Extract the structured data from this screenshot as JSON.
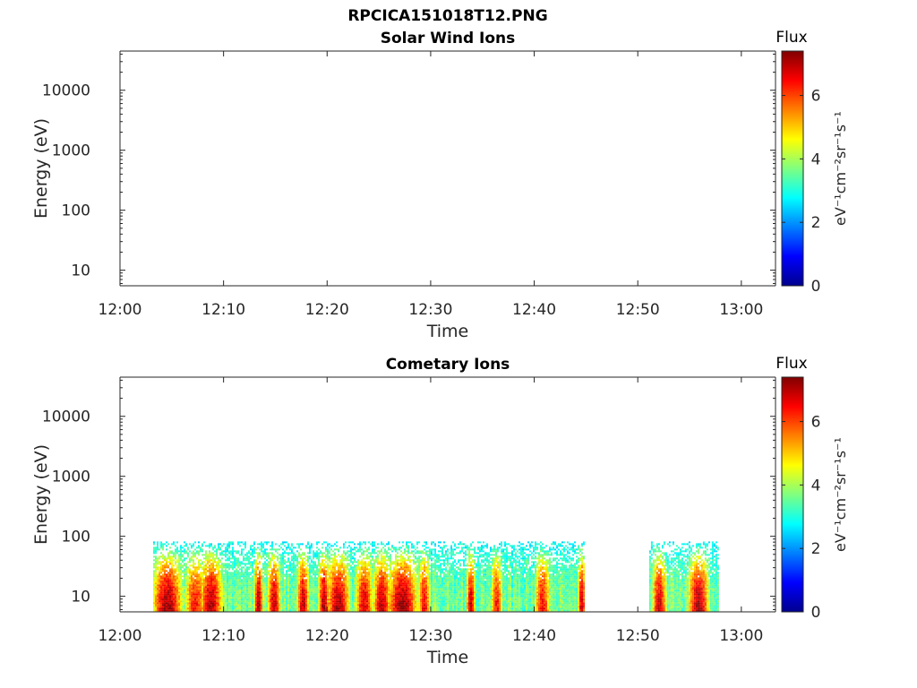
{
  "figure": {
    "title": "RPCICA151018T12.PNG"
  },
  "colors": {
    "colormap": [
      "#00008f",
      "#0000ff",
      "#00ffff",
      "#ffff00",
      "#ff0000",
      "#800000"
    ],
    "axis": "#262626",
    "no_data": "#ffffff"
  },
  "chart_data": [
    {
      "type": "heatmap",
      "title": "Solar Wind Ions",
      "xlabel": "Time",
      "ylabel": "Energy (eV)",
      "xticks": [
        "12:00",
        "12:10",
        "12:20",
        "12:30",
        "12:40",
        "12:50",
        "13:00"
      ],
      "xlim_minutes": [
        0,
        63.3
      ],
      "yscale": "log",
      "ylim": [
        5.5,
        45000
      ],
      "yticks": [
        {
          "value": 10,
          "label": "10"
        },
        {
          "value": 100,
          "label": "100"
        },
        {
          "value": 1000,
          "label": "1000"
        },
        {
          "value": 10000,
          "label": "10000"
        }
      ],
      "colorbar": {
        "label": "Flux",
        "unit": "eV⁻¹cm⁻²sr⁻¹s⁻¹",
        "range": [
          0,
          7.4
        ],
        "ticks": [
          {
            "value": 0,
            "label": "0"
          },
          {
            "value": 2,
            "label": "2"
          },
          {
            "value": 4,
            "label": "4"
          },
          {
            "value": 6,
            "label": "6"
          }
        ]
      },
      "data_present": false,
      "intervals": [],
      "energy_range": []
    },
    {
      "type": "heatmap",
      "title": "Cometary Ions",
      "xlabel": "Time",
      "ylabel": "Energy (eV)",
      "xticks": [
        "12:00",
        "12:10",
        "12:20",
        "12:30",
        "12:40",
        "12:50",
        "13:00"
      ],
      "xlim_minutes": [
        0,
        63.3
      ],
      "yscale": "log",
      "ylim": [
        5.5,
        45000
      ],
      "yticks": [
        {
          "value": 10,
          "label": "10"
        },
        {
          "value": 100,
          "label": "100"
        },
        {
          "value": 1000,
          "label": "1000"
        },
        {
          "value": 10000,
          "label": "10000"
        }
      ],
      "colorbar": {
        "label": "Flux",
        "unit": "eV⁻¹cm⁻²sr⁻¹s⁻¹",
        "range": [
          0,
          7.4
        ],
        "ticks": [
          {
            "value": 0,
            "label": "0"
          },
          {
            "value": 2,
            "label": "2"
          },
          {
            "value": 4,
            "label": "4"
          },
          {
            "value": 6,
            "label": "6"
          }
        ]
      },
      "data_present": true,
      "energy_range": [
        5.5,
        82
      ],
      "intervals": [
        {
          "start_min": 3.2,
          "end_min": 44.8
        },
        {
          "start_min": 51.1,
          "end_min": 57.7
        }
      ],
      "flux_peaks": [
        {
          "t": 4.5,
          "width": 2.0,
          "level": 7.2
        },
        {
          "t": 7.2,
          "width": 1.5,
          "level": 6.4
        },
        {
          "t": 8.7,
          "width": 1.5,
          "level": 7.2
        },
        {
          "t": 13.3,
          "width": 0.6,
          "level": 7.2
        },
        {
          "t": 14.8,
          "width": 0.9,
          "level": 7.0
        },
        {
          "t": 17.6,
          "width": 0.8,
          "level": 7.0
        },
        {
          "t": 19.6,
          "width": 0.7,
          "level": 7.2
        },
        {
          "t": 21.0,
          "width": 1.6,
          "level": 7.1
        },
        {
          "t": 23.5,
          "width": 1.2,
          "level": 6.8
        },
        {
          "t": 25.2,
          "width": 1.2,
          "level": 7.0
        },
        {
          "t": 27.2,
          "width": 2.0,
          "level": 7.3
        },
        {
          "t": 29.3,
          "width": 0.8,
          "level": 6.6
        },
        {
          "t": 33.8,
          "width": 0.6,
          "level": 7.0
        },
        {
          "t": 36.3,
          "width": 0.8,
          "level": 6.4
        },
        {
          "t": 40.7,
          "width": 1.0,
          "level": 6.6
        },
        {
          "t": 44.5,
          "width": 0.5,
          "level": 7.0
        },
        {
          "t": 52.0,
          "width": 1.0,
          "level": 6.9
        },
        {
          "t": 55.8,
          "width": 1.4,
          "level": 7.2
        }
      ]
    }
  ]
}
